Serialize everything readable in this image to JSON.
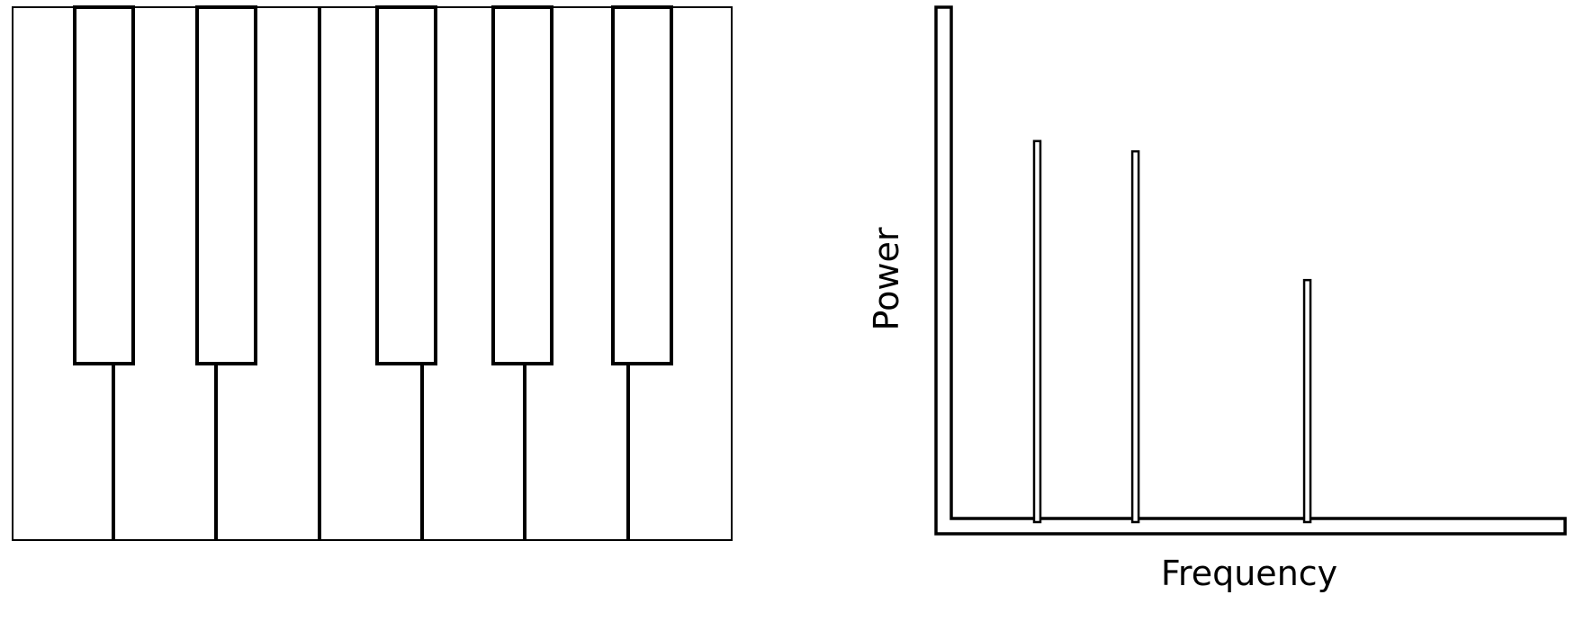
{
  "keyboard": {
    "white_key_count": 7,
    "black_key_count": 5,
    "colors": {
      "outline": "#000000",
      "key_fill": "#ffffff"
    }
  },
  "spectrum": {
    "x_axis_label": "Frequency",
    "y_axis_label": "Power",
    "peaks": [
      {
        "position": 0.14,
        "power": 0.74
      },
      {
        "position": 0.3,
        "power": 0.72
      },
      {
        "position": 0.58,
        "power": 0.47
      }
    ],
    "colors": {
      "outline": "#000000",
      "fill": "#ffffff"
    }
  }
}
